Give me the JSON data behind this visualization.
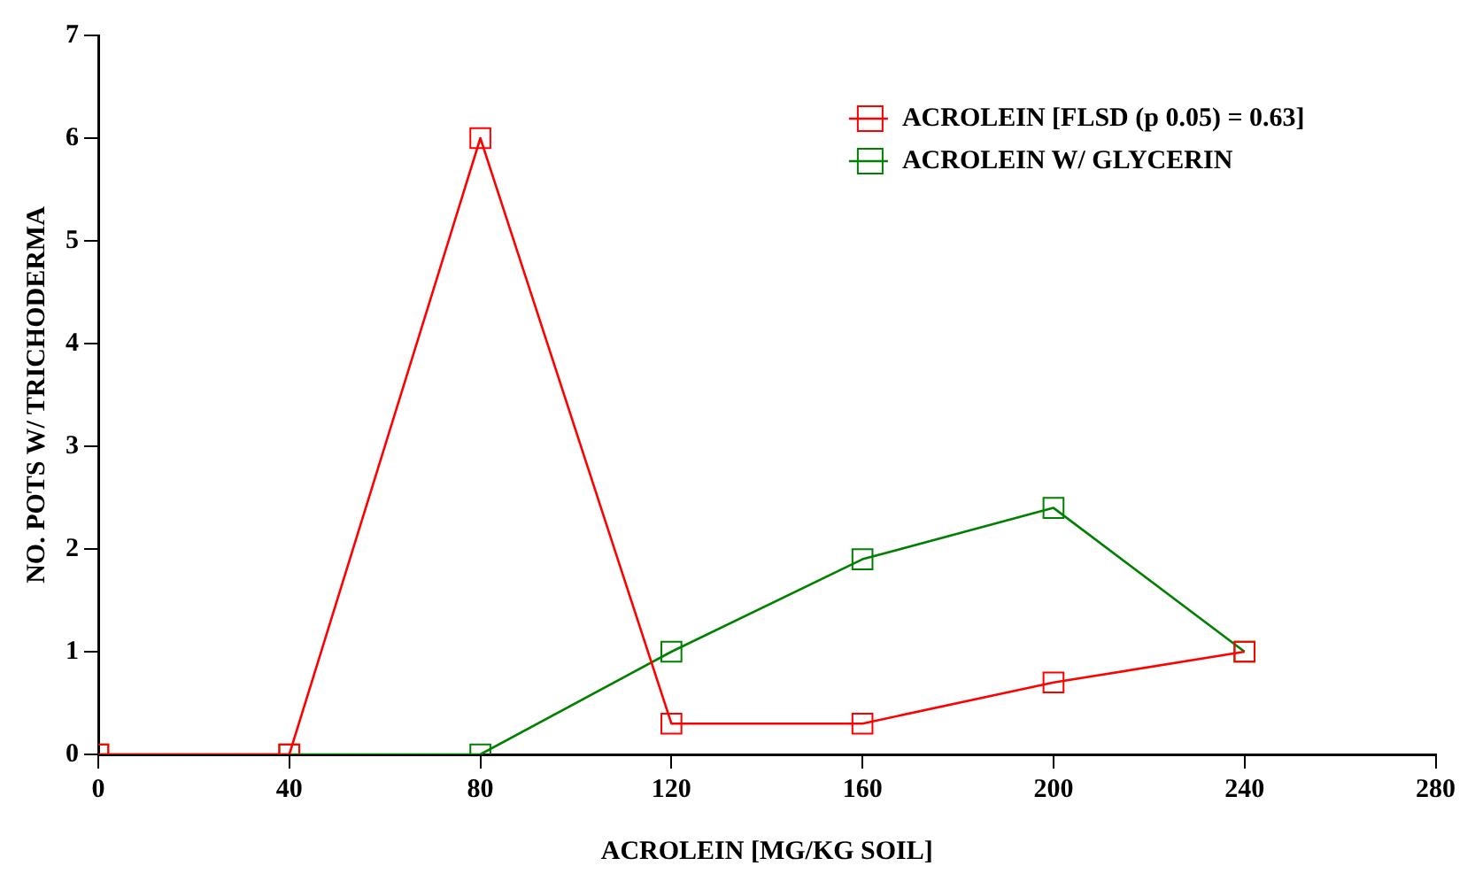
{
  "chart_data": {
    "type": "line",
    "xlabel": "ACROLEIN [MG/KG SOIL]",
    "ylabel": "NO. POTS W/ TRICHODERMA",
    "x": [
      0,
      40,
      80,
      120,
      160,
      200,
      240
    ],
    "series": [
      {
        "name": "ACROLEIN [FLSD (p 0.05) = 0.63]",
        "color": "#ff0000",
        "values": [
          0,
          0,
          6,
          0.3,
          0.3,
          0.7,
          1.0
        ]
      },
      {
        "name": "ACROLEIN W/ GLYCERIN",
        "color": "#008000",
        "values": [
          0,
          0,
          0,
          1.0,
          1.9,
          2.4,
          1.0
        ]
      }
    ],
    "xlim": [
      0,
      280
    ],
    "xticks": [
      0,
      40,
      80,
      120,
      160,
      200,
      240,
      280
    ],
    "ylim": [
      0,
      7
    ],
    "yticks": [
      0,
      1,
      2,
      3,
      4,
      5,
      6,
      7
    ],
    "grid": false,
    "legend": "top right",
    "marker": "square",
    "line_style": "solid"
  }
}
